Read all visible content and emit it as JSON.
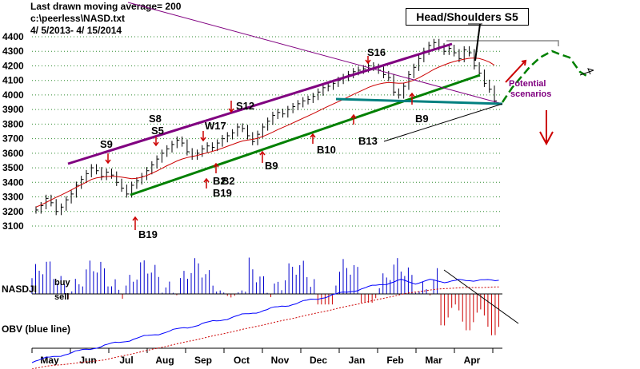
{
  "header": {
    "line1": "Last drawn moving average= 200",
    "line2": "c:\\peerless\\NASD.txt",
    "line3": " 4/ 5/2013-  4/ 15/2014"
  },
  "callout": "Head/Shoulders S5",
  "scenario_label": [
    "Potential",
    "scenarios"
  ],
  "panel_labels": {
    "indicator": "NASDJI",
    "buy": "buy",
    "sell": "sell",
    "obv": "OBV (blue line)"
  },
  "colors": {
    "price_bars": "#000000",
    "ma": "#cc0000",
    "upper_channel": "#800080",
    "lower_channel": "#008000",
    "neckline": "#008080",
    "buy_bars": "#0000cc",
    "sell_bars": "#cc0000",
    "obv": "#0000ff",
    "signal": "#cc0000",
    "scenario": "#008000",
    "scenario_text": "#800080"
  },
  "signals": [
    {
      "label": "S9",
      "type": "sell"
    },
    {
      "label": "S8",
      "type": "sell"
    },
    {
      "label": "S5",
      "type": "sell"
    },
    {
      "label": "W17",
      "type": "sell"
    },
    {
      "label": "S12",
      "type": "sell"
    },
    {
      "label": "S16",
      "type": "sell"
    },
    {
      "label": "B19",
      "type": "buy"
    },
    {
      "label": "B2",
      "type": "buy"
    },
    {
      "label": "B2",
      "type": "buy"
    },
    {
      "label": "B19",
      "type": "buy"
    },
    {
      "label": "B9",
      "type": "buy"
    },
    {
      "label": "B10",
      "type": "buy"
    },
    {
      "label": "B13",
      "type": "buy"
    },
    {
      "label": "B9",
      "type": "buy"
    }
  ],
  "chart_data": {
    "type": "line",
    "title": "",
    "ylim": [
      3100,
      4400
    ],
    "y_ticks": [
      3100,
      3200,
      3300,
      3400,
      3500,
      3600,
      3700,
      3800,
      3900,
      4000,
      4100,
      4200,
      4300,
      4400
    ],
    "x_tick_labels": [
      "May",
      "Jun",
      "Jul",
      "Aug",
      "Sep",
      "Oct",
      "Nov",
      "Dec",
      "Jan",
      "Feb",
      "Mar",
      "Apr"
    ],
    "grid": true,
    "series": [
      {
        "name": "",
        "values": [
          3210,
          3240,
          3290,
          3260,
          3200,
          3230,
          3280,
          3320,
          3380,
          3420,
          3460,
          3500,
          3480,
          3440,
          3470,
          3450,
          3400,
          3360,
          3320,
          3380,
          3410,
          3440,
          3480,
          3520,
          3560,
          3600,
          3630,
          3660,
          3690,
          3670,
          3610,
          3580,
          3600,
          3630,
          3650,
          3640,
          3670,
          3700,
          3720,
          3740,
          3780,
          3770,
          3720,
          3680,
          3730,
          3780,
          3820,
          3860,
          3880,
          3870,
          3900,
          3920,
          3940,
          3960,
          3970,
          3990,
          4020,
          4050,
          4060,
          4080,
          4100,
          4120,
          4140,
          4160,
          4170,
          4180,
          4200,
          4190,
          4170,
          4140,
          4120,
          4020,
          4000,
          4060,
          4140,
          4190,
          4250,
          4300,
          4340,
          4360,
          4330,
          4300,
          4320,
          4290,
          4250,
          4310,
          4290,
          4200,
          4150,
          4080,
          4040,
          3960
        ]
      },
      {
        "name": "",
        "values": [
          3230,
          3245,
          3262,
          3280,
          3297,
          3313,
          3330,
          3348,
          3366,
          3384,
          3401,
          3420,
          3430,
          3435,
          3440,
          3442,
          3440,
          3436,
          3430,
          3425,
          3428,
          3435,
          3447,
          3462,
          3478,
          3496,
          3514,
          3530,
          3547,
          3560,
          3570,
          3577,
          3585,
          3594,
          3603,
          3613,
          3623,
          3635,
          3648,
          3660,
          3673,
          3684,
          3690,
          3695,
          3703,
          3715,
          3729,
          3745,
          3762,
          3777,
          3792,
          3808,
          3824,
          3840,
          3856,
          3872,
          3889,
          3906,
          3922,
          3938,
          3954,
          3970,
          3987,
          4004,
          4020,
          4036,
          4052,
          4065,
          4075,
          4082,
          4086,
          4083,
          4080,
          4082,
          4090,
          4102,
          4118,
          4136,
          4156,
          4176,
          4192,
          4206,
          4219,
          4230,
          4238,
          4246,
          4252,
          4254,
          4250,
          4240,
          4226,
          4205
        ]
      }
    ]
  }
}
